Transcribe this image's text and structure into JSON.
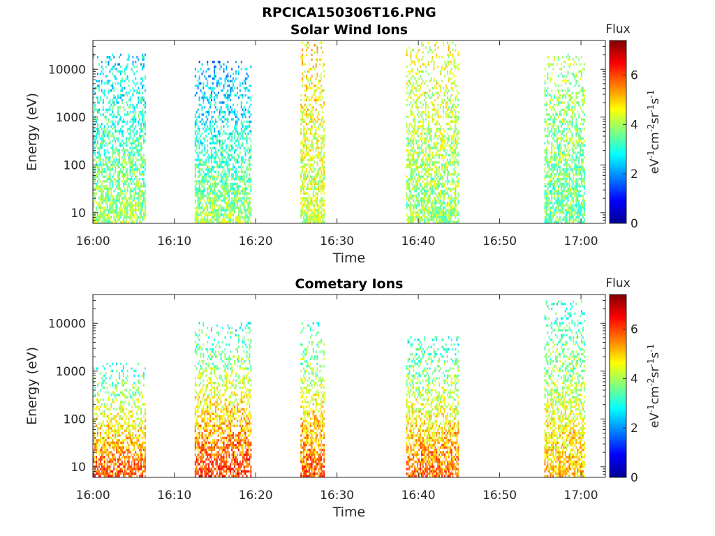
{
  "figure": {
    "title": "RPCICA150306T16.PNG"
  },
  "chart_data": [
    {
      "type": "heatmap",
      "title": "Solar Wind Ions",
      "xlabel": "Time",
      "ylabel": "Energy (eV)",
      "y_scale": "log",
      "xlim": [
        "15:59:59",
        "17:03:00"
      ],
      "ylim": [
        6,
        40000
      ],
      "x_ticks": [
        "16:00",
        "16:10",
        "16:20",
        "16:30",
        "16:40",
        "16:50",
        "17:00"
      ],
      "y_ticks": [
        "10",
        "100",
        "1000",
        "10000"
      ],
      "colorbar": {
        "title": "Flux",
        "label": "eV-1cm-2sr-1s-1",
        "ticks": [
          "0",
          "2",
          "4",
          "6"
        ],
        "range": [
          0,
          7.4
        ],
        "colormap": "jet"
      },
      "bursts": [
        {
          "t_start": "16:00",
          "t_end": "16:06:30",
          "flux_low_energy": 4.0,
          "flux_high_energy": 2.5,
          "max_energy": 20000
        },
        {
          "t_start": "16:12:30",
          "t_end": "16:19:30",
          "flux_low_energy": 4.0,
          "flux_high_energy": 2.0,
          "max_energy": 15000
        },
        {
          "t_start": "16:25:30",
          "t_end": "16:28:30",
          "flux_low_energy": 4.2,
          "flux_high_energy": 4.8,
          "max_energy": 35000
        },
        {
          "t_start": "16:38:30",
          "t_end": "16:45",
          "flux_low_energy": 3.8,
          "flux_high_energy": 4.5,
          "max_energy": 35000
        },
        {
          "t_start": "16:55:30",
          "t_end": "17:00:30",
          "flux_low_energy": 3.5,
          "flux_high_energy": 4.0,
          "max_energy": 20000
        }
      ]
    },
    {
      "type": "heatmap",
      "title": "Cometary Ions",
      "xlabel": "Time",
      "ylabel": "Energy (eV)",
      "y_scale": "log",
      "xlim": [
        "15:59:59",
        "17:03:00"
      ],
      "ylim": [
        6,
        40000
      ],
      "x_ticks": [
        "16:00",
        "16:10",
        "16:20",
        "16:30",
        "16:40",
        "16:50",
        "17:00"
      ],
      "y_ticks": [
        "10",
        "100",
        "1000",
        "10000"
      ],
      "colorbar": {
        "title": "Flux",
        "label": "eV-1cm-2sr-1s-1",
        "ticks": [
          "0",
          "2",
          "4",
          "6"
        ],
        "range": [
          0,
          7.4
        ],
        "colormap": "jet"
      },
      "bursts": [
        {
          "t_start": "16:00",
          "t_end": "16:06:30",
          "flux_low_energy": 6.0,
          "flux_high_energy": 3.0,
          "max_energy": 1500
        },
        {
          "t_start": "16:12:30",
          "t_end": "16:19:30",
          "flux_low_energy": 6.2,
          "flux_high_energy": 3.0,
          "max_energy": 10000
        },
        {
          "t_start": "16:25:30",
          "t_end": "16:28:30",
          "flux_low_energy": 6.0,
          "flux_high_energy": 3.0,
          "max_energy": 10000
        },
        {
          "t_start": "16:38:30",
          "t_end": "16:45",
          "flux_low_energy": 5.8,
          "flux_high_energy": 3.0,
          "max_energy": 5000
        },
        {
          "t_start": "16:55:30",
          "t_end": "17:00:30",
          "flux_low_energy": 5.2,
          "flux_high_energy": 3.0,
          "max_energy": 30000
        }
      ]
    }
  ]
}
